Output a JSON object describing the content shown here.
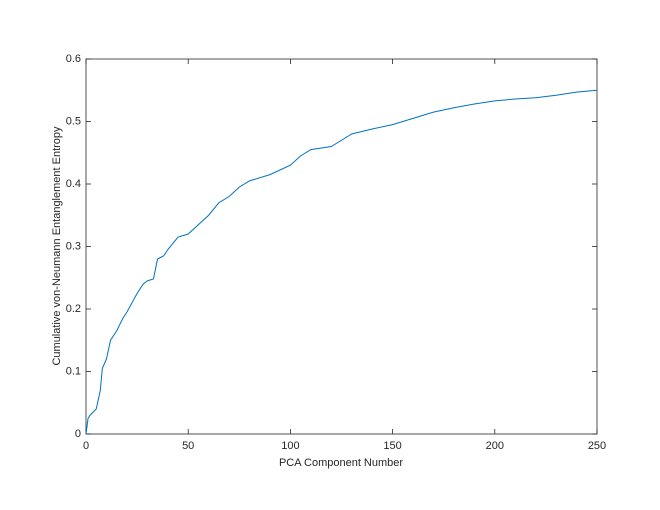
{
  "chart_data": {
    "type": "line",
    "xlabel": "PCA Component Number",
    "ylabel": "Cumulative von-Neumann Entanglement Entropy",
    "x": [
      0,
      1,
      2,
      5,
      7,
      8,
      10,
      12,
      15,
      18,
      20,
      25,
      28,
      30,
      33,
      35,
      38,
      40,
      45,
      50,
      55,
      60,
      65,
      70,
      75,
      80,
      90,
      100,
      105,
      110,
      120,
      125,
      130,
      140,
      150,
      160,
      170,
      180,
      190,
      200,
      210,
      220,
      230,
      240,
      250
    ],
    "series": [
      {
        "color": "#0072bd",
        "values": [
          0,
          0.025,
          0.03,
          0.04,
          0.07,
          0.105,
          0.12,
          0.15,
          0.165,
          0.185,
          0.195,
          0.225,
          0.24,
          0.245,
          0.248,
          0.28,
          0.285,
          0.295,
          0.315,
          0.32,
          0.335,
          0.35,
          0.37,
          0.38,
          0.395,
          0.405,
          0.415,
          0.43,
          0.445,
          0.455,
          0.46,
          0.47,
          0.48,
          0.488,
          0.495,
          0.505,
          0.515,
          0.522,
          0.528,
          0.533,
          0.536,
          0.538,
          0.542,
          0.547,
          0.55
        ]
      }
    ],
    "xlim": [
      0,
      250
    ],
    "xticks": [
      0,
      50,
      100,
      150,
      200,
      250
    ],
    "ylim": [
      0,
      0.6
    ],
    "yticks": [
      0,
      0.1,
      0.2,
      0.3,
      0.4,
      0.5,
      0.6
    ]
  }
}
